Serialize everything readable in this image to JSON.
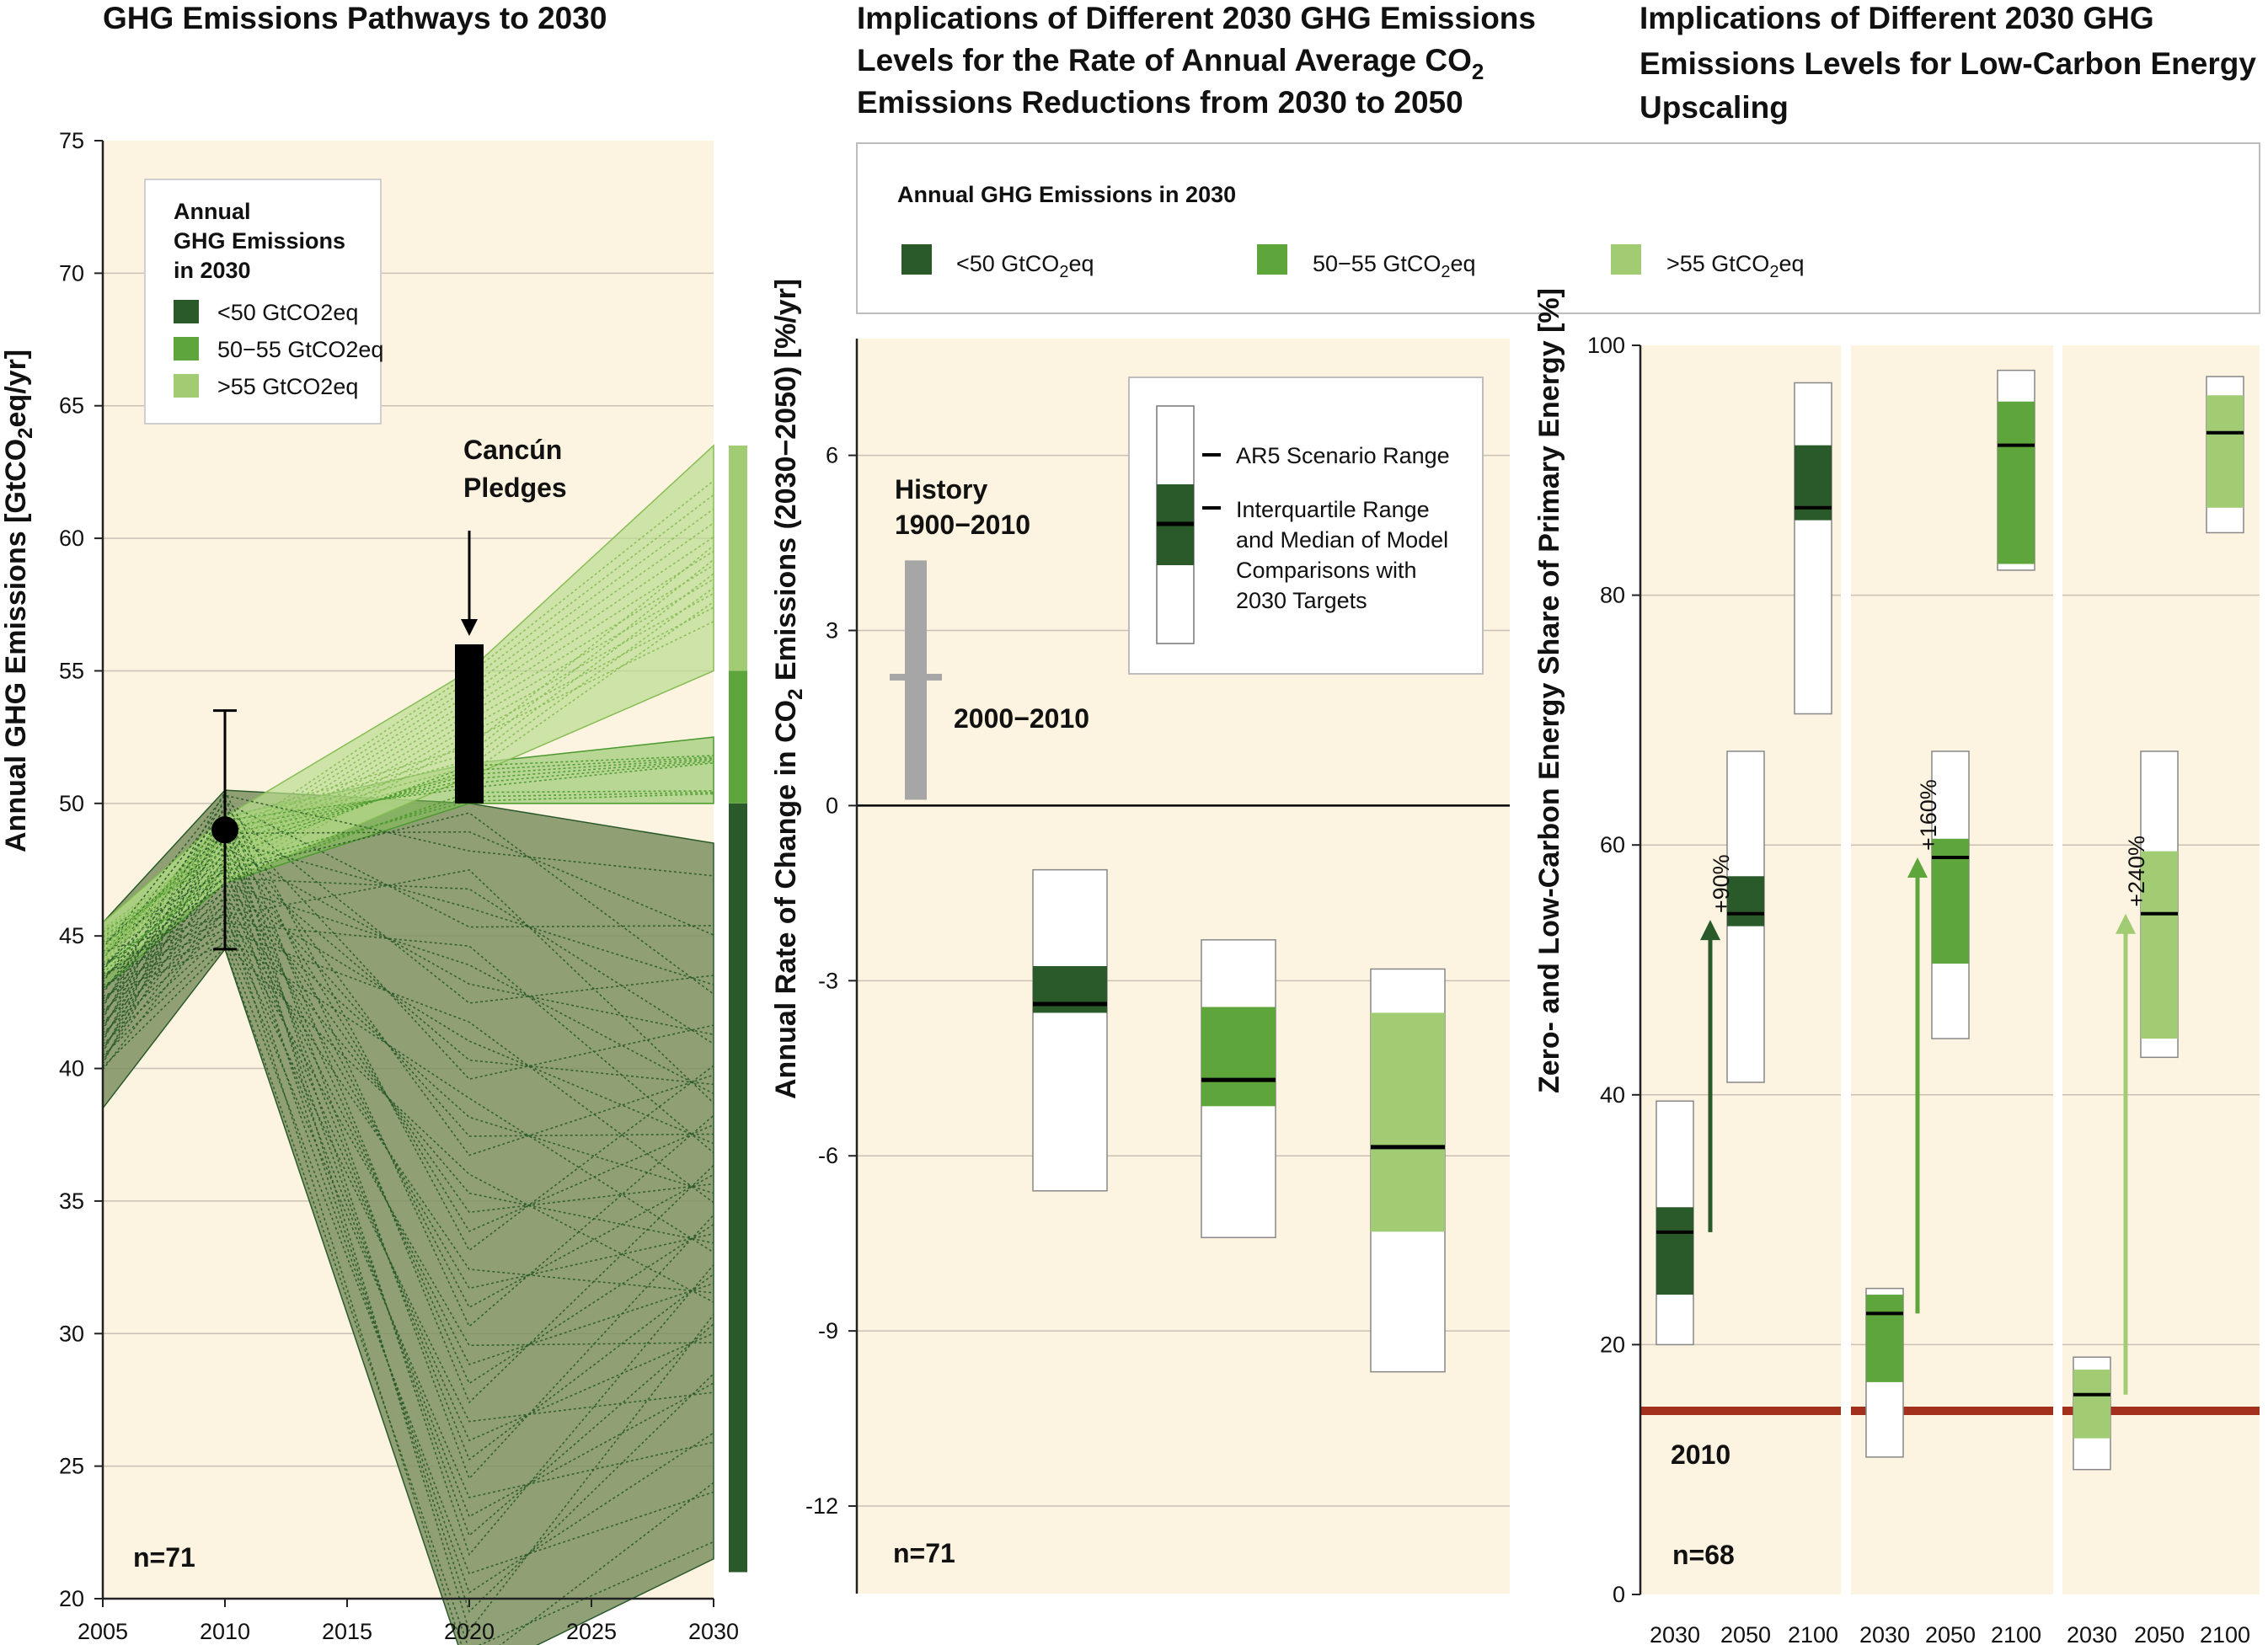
{
  "colors": {
    "dark": "#2a5a2a",
    "mid": "#5ea53c",
    "light": "#a1cc73",
    "panel_bg": "#fdf3e1",
    "history": "#a6a6a6",
    "line2010": "#a3301c"
  },
  "chart_data": [
    {
      "type": "area",
      "title": "GHG Emissions Pathways to 2030",
      "ylabel": "Annual GHG Emissions [GtCO2eq/yr]",
      "ylim": [
        20,
        75
      ],
      "xlim": [
        2005,
        2030
      ],
      "x_ticks": [
        "2005",
        "2010",
        "2015",
        "2020",
        "2025",
        "2030"
      ],
      "y_ticks": [
        "20",
        "25",
        "30",
        "35",
        "40",
        "45",
        "50",
        "55",
        "60",
        "65",
        "70",
        "75"
      ],
      "legend": {
        "title_lines": [
          "Annual",
          "GHG Emissions",
          "in 2030"
        ],
        "items": [
          "<50 GtCO2eq",
          "50−55 GtCO2eq",
          ">55 GtCO2eq"
        ]
      },
      "bands": [
        {
          "category": "<50 GtCO2eq",
          "x": [
            2005,
            2010,
            2020,
            2030
          ],
          "upper": [
            45.5,
            50.5,
            50,
            48.5
          ],
          "lower": [
            38.5,
            44.5,
            17,
            21.5
          ]
        },
        {
          "category": "50−55 GtCO2eq",
          "x": [
            2005,
            2010,
            2020,
            2030
          ],
          "upper": [
            45.5,
            49.5,
            51.5,
            52.5
          ],
          "lower": [
            43,
            47,
            50,
            50
          ]
        },
        {
          "category": ">55 GtCO2eq",
          "x": [
            2005,
            2010,
            2020,
            2030
          ],
          "upper": [
            45.5,
            49.5,
            55,
            63.5
          ],
          "lower": [
            43.5,
            47,
            51,
            55
          ]
        }
      ],
      "history_point": {
        "x": 2010,
        "y": 49,
        "low": 44.5,
        "high": 53.5
      },
      "cancun_pledges": {
        "label_lines": [
          "Cancún",
          "Pledges"
        ],
        "x": 2020,
        "low": 50,
        "high": 56
      },
      "side_bar": [
        {
          "category": "<50 GtCO2eq",
          "from": 21,
          "to": 50
        },
        {
          "category": "50−55 GtCO2eq",
          "from": 50,
          "to": 55
        },
        {
          "category": ">55 GtCO2eq",
          "from": 55,
          "to": 63.5
        }
      ],
      "n_label": "n=71"
    },
    {
      "type": "bar",
      "title_lines": [
        "Implications of Different 2030 GHG Emissions",
        "Levels for the Rate of Annual Average CO2",
        "Emissions Reductions from 2030 to 2050"
      ],
      "ylabel": "Annual Rate of Change in CO2 Emissions (2030−2050) [%/yr]",
      "ylim": [
        -13.5,
        8
      ],
      "y_ticks": [
        "6",
        "3",
        "0",
        "-3",
        "-6",
        "-9",
        "-12"
      ],
      "history": {
        "label_lines": [
          "History",
          "1900−2010"
        ],
        "low": 0.1,
        "high": 4.2,
        "marker": 2.2,
        "marker_label": "2000−2010"
      },
      "boxes": [
        {
          "category": "<50 GtCO2eq",
          "range": [
            -6.6,
            -1.1
          ],
          "iqr": [
            -3.55,
            -2.75
          ],
          "median": -3.4
        },
        {
          "category": "50−55 GtCO2eq",
          "range": [
            -7.4,
            -2.3
          ],
          "iqr": [
            -5.15,
            -3.45
          ],
          "median": -4.7
        },
        {
          "category": ">55 GtCO2eq",
          "range": [
            -9.7,
            -2.8
          ],
          "iqr": [
            -7.3,
            -3.55
          ],
          "median": -5.85
        }
      ],
      "legend": {
        "range_label": "AR5 Scenario Range",
        "iqr_label_lines": [
          "Interquartile Range",
          "and Median of Model",
          "Comparisons with",
          "2030 Targets"
        ]
      },
      "n_label": "n=71"
    },
    {
      "type": "bar",
      "title_lines": [
        "Implications of Different 2030 GHG",
        "Emissions Levels for Low-Carbon Energy",
        "Upscaling"
      ],
      "ylabel": "Zero- and Low-Carbon Energy Share of Primary Energy [%]",
      "ylim": [
        0,
        100
      ],
      "y_ticks": [
        "100",
        "80",
        "60",
        "40",
        "20",
        "0"
      ],
      "x_ticks": [
        "2030",
        "2050",
        "2100"
      ],
      "groups": [
        {
          "category": "<50 GtCO2eq",
          "increase_label": "+90%",
          "arrow": {
            "from": 29,
            "to": 54
          },
          "boxes": [
            {
              "year": "2030",
              "range": [
                20,
                39.5
              ],
              "iqr": [
                24,
                31
              ],
              "median": 29
            },
            {
              "year": "2050",
              "range": [
                41,
                67.5
              ],
              "iqr": [
                53.5,
                57.5
              ],
              "median": 54.5
            },
            {
              "year": "2100",
              "range": [
                70.5,
                97
              ],
              "iqr": [
                86,
                92
              ],
              "median": 87
            }
          ]
        },
        {
          "category": "50−55 GtCO2eq",
          "increase_label": "+160%",
          "arrow": {
            "from": 22.5,
            "to": 59
          },
          "boxes": [
            {
              "year": "2030",
              "range": [
                11,
                24.5
              ],
              "iqr": [
                17,
                24
              ],
              "median": 22.5
            },
            {
              "year": "2050",
              "range": [
                44.5,
                67.5
              ],
              "iqr": [
                50.5,
                60.5
              ],
              "median": 59
            },
            {
              "year": "2100",
              "range": [
                82,
                98
              ],
              "iqr": [
                82.5,
                95.5
              ],
              "median": 92
            }
          ]
        },
        {
          "category": ">55 GtCO2eq",
          "increase_label": "+240%",
          "arrow": {
            "from": 16,
            "to": 54.5
          },
          "boxes": [
            {
              "year": "2030",
              "range": [
                10,
                19
              ],
              "iqr": [
                12.5,
                18
              ],
              "median": 16
            },
            {
              "year": "2050",
              "range": [
                43,
                67.5
              ],
              "iqr": [
                44.5,
                59.5
              ],
              "median": 54.5
            },
            {
              "year": "2100",
              "range": [
                85,
                97.5
              ],
              "iqr": [
                87,
                96
              ],
              "median": 93
            }
          ]
        }
      ],
      "reference_2010": {
        "value": 14.7,
        "label": "2010"
      },
      "n_label": "n=68"
    }
  ],
  "shared_legend": {
    "title": "Annual GHG Emissions in 2030",
    "items": [
      "<50 GtCO2eq",
      "50−55 GtCO2eq",
      ">55 GtCO2eq"
    ]
  }
}
